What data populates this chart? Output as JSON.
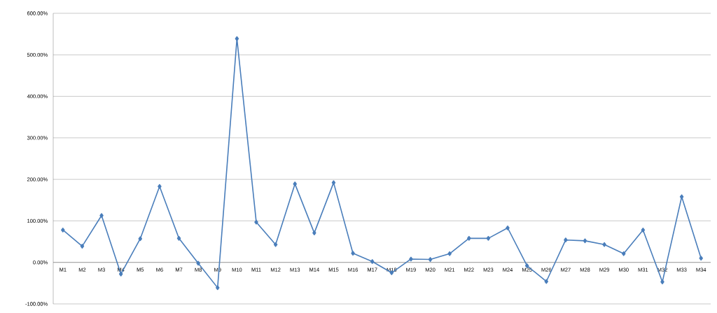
{
  "chart_data": {
    "type": "line",
    "categories": [
      "M1",
      "M2",
      "M3",
      "M4",
      "M5",
      "M6",
      "M7",
      "M8",
      "M9",
      "M10",
      "M11",
      "M12",
      "M13",
      "M14",
      "M15",
      "M16",
      "M17",
      "M18",
      "M19",
      "M20",
      "M21",
      "M22",
      "M23",
      "M24",
      "M25",
      "M26",
      "M27",
      "M28",
      "M29",
      "M30",
      "M31",
      "M32",
      "M33",
      "M34"
    ],
    "series": [
      {
        "color": "#4a7ebb",
        "values": [
          78,
          39,
          113,
          -28,
          57,
          183,
          58,
          -2,
          -61,
          539,
          97,
          43,
          189,
          71,
          192,
          22,
          2,
          -25,
          8,
          7,
          21,
          58,
          58,
          83,
          -8,
          -46,
          54,
          52,
          43,
          21,
          78,
          -47,
          158,
          10
        ]
      }
    ],
    "ylim": [
      -100,
      600
    ],
    "yticks": [
      {
        "value": -100,
        "label": "-100.00%"
      },
      {
        "value": 0,
        "label": "0.00%"
      },
      {
        "value": 100,
        "label": "100.00%"
      },
      {
        "value": 200,
        "label": "200.00%"
      },
      {
        "value": 300,
        "label": "300.00%"
      },
      {
        "value": 400,
        "label": "400.00%"
      },
      {
        "value": 500,
        "label": "500.00%"
      },
      {
        "value": 600,
        "label": "600.00%"
      }
    ],
    "grid": "y",
    "marker": "diamond",
    "line_style": "solid",
    "legend": false
  }
}
